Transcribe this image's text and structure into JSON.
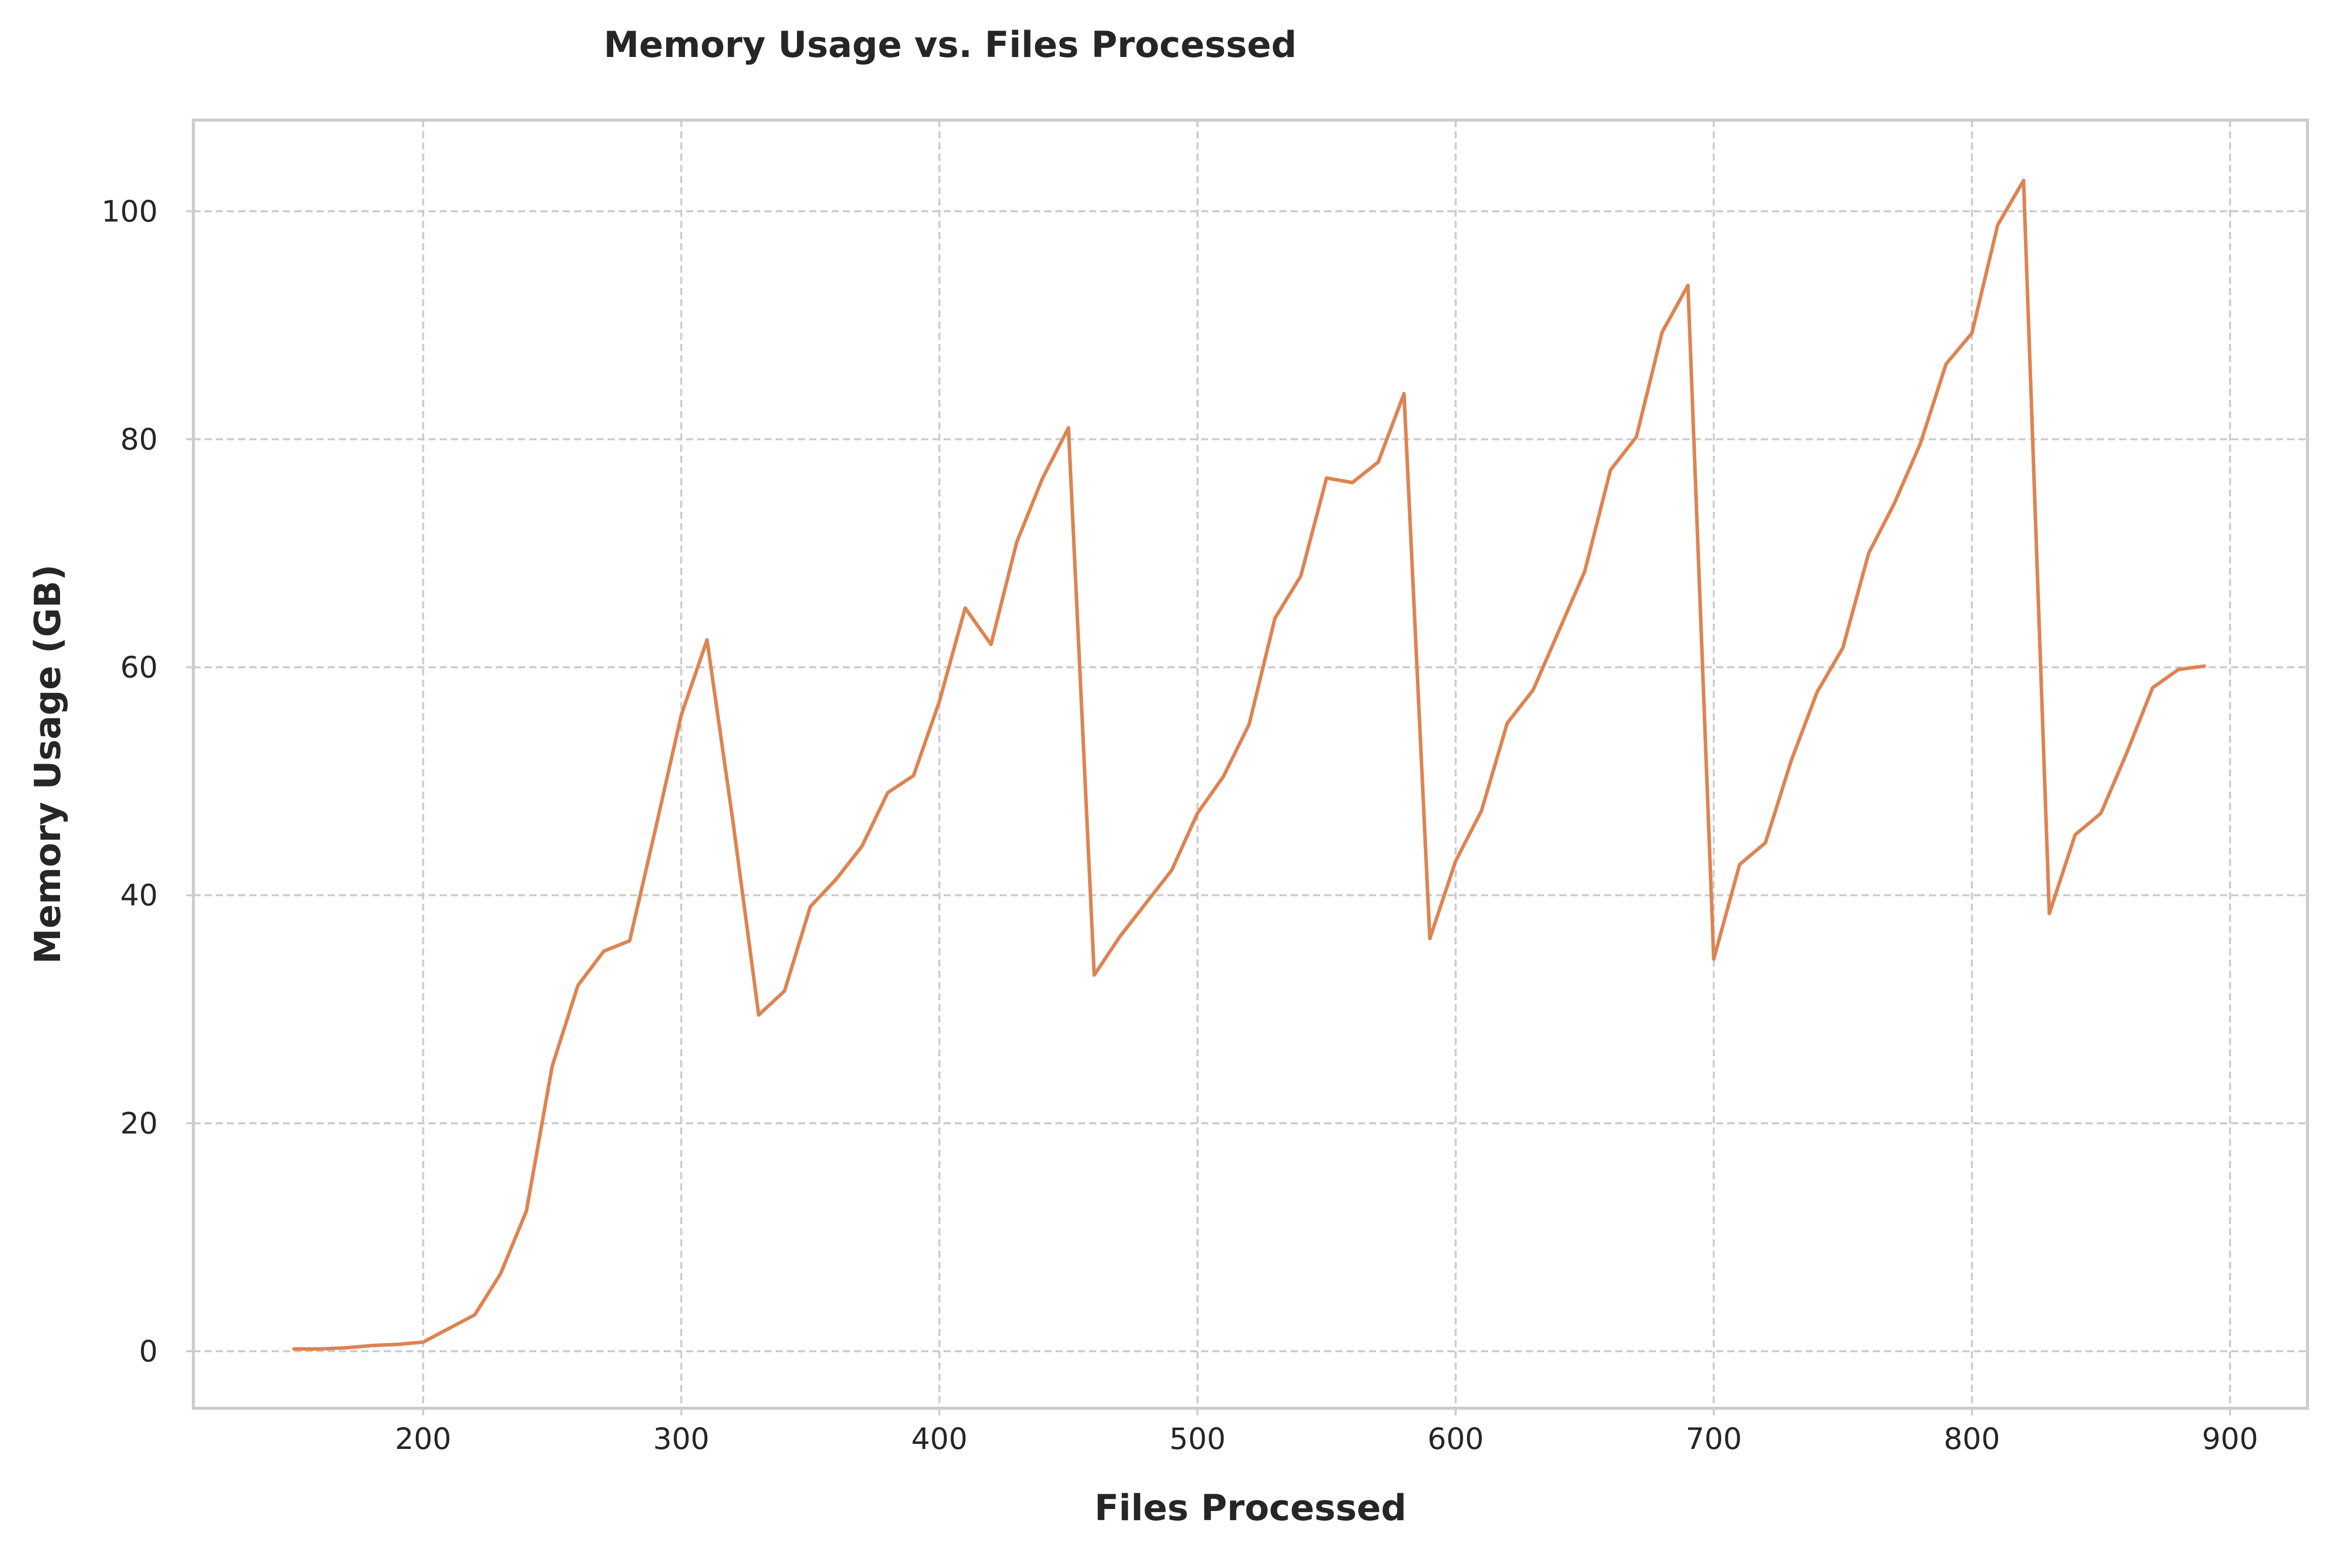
{
  "chart_data": {
    "type": "line",
    "title": "Memory Usage vs. Files Processed",
    "xlabel": "Files Processed",
    "ylabel": "Memory Usage (GB)",
    "xlim": [
      111,
      930
    ],
    "ylim": [
      -5,
      108
    ],
    "xticks": [
      200,
      300,
      400,
      500,
      600,
      700,
      800,
      900
    ],
    "yticks": [
      0,
      20,
      40,
      60,
      80,
      100
    ],
    "grid": true,
    "legend": "none",
    "series": [
      {
        "color": "#dd8452",
        "x": [
          150,
          160,
          170,
          180,
          190,
          200,
          210,
          220,
          230,
          240,
          250,
          260,
          270,
          280,
          290,
          300,
          310,
          320,
          330,
          340,
          350,
          360,
          370,
          380,
          390,
          400,
          410,
          420,
          430,
          440,
          450,
          460,
          470,
          480,
          490,
          500,
          510,
          520,
          530,
          540,
          550,
          560,
          570,
          580,
          590,
          600,
          610,
          620,
          630,
          640,
          650,
          660,
          670,
          680,
          690,
          700,
          710,
          720,
          730,
          740,
          750,
          760,
          770,
          780,
          790,
          800,
          810,
          820,
          830,
          840,
          850,
          860,
          870,
          880,
          890
        ],
        "y": [
          0.2,
          0.2,
          0.3,
          0.5,
          0.6,
          0.8,
          2.0,
          3.2,
          6.8,
          12.3,
          25.0,
          32.1,
          35.1,
          36.0,
          45.8,
          55.8,
          62.4,
          46.5,
          29.5,
          31.6,
          39.0,
          41.4,
          44.3,
          49.0,
          50.5,
          57.0,
          65.2,
          62.0,
          71.0,
          76.6,
          81.0,
          33.0,
          36.4,
          39.3,
          42.2,
          47.2,
          50.4,
          55.0,
          64.3,
          68.0,
          76.6,
          76.2,
          78.0,
          84.0,
          36.2,
          43.0,
          47.4,
          55.1,
          58.0,
          63.2,
          68.4,
          77.3,
          80.2,
          89.4,
          93.5,
          34.4,
          42.7,
          44.6,
          51.8,
          57.8,
          61.7,
          70.0,
          74.4,
          79.6,
          86.6,
          89.3,
          98.8,
          102.7,
          38.4,
          45.3,
          47.2,
          52.5,
          58.2,
          59.8,
          60.1
        ]
      }
    ]
  }
}
